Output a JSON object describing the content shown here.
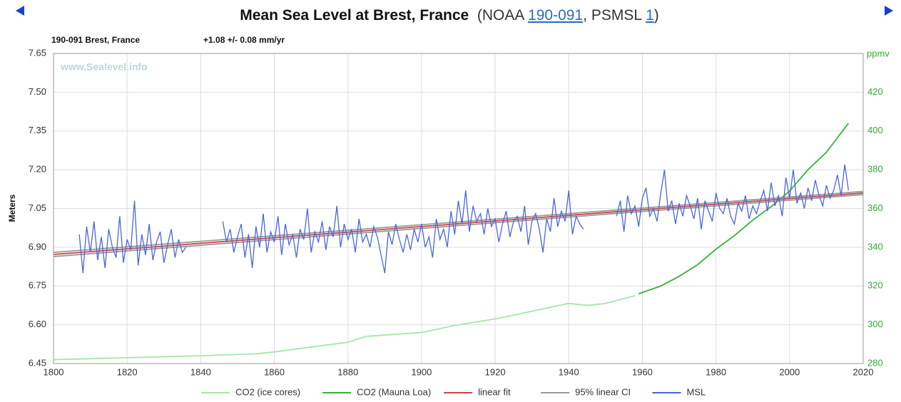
{
  "chart_data": {
    "type": "line",
    "title": "Mean Sea Level at Brest, France",
    "source": [
      "(NOAA ",
      "190-091",
      ", PSMSL ",
      "1",
      ")"
    ],
    "station": "190-091 Brest, France",
    "trend": "+1.08 +/- 0.08 mm/yr",
    "watermark": "www.Sealevel.info",
    "ylabel": "Meters",
    "y2label": "ppmv",
    "xlim": [
      1800,
      2020
    ],
    "xticks": [
      1800,
      1820,
      1840,
      1860,
      1880,
      1900,
      1920,
      1940,
      1960,
      1980,
      2000,
      2020
    ],
    "ylim": [
      6.45,
      7.65
    ],
    "yticks": [
      6.45,
      {
        "value": 6.6,
        "label": "6.60"
      },
      6.75,
      {
        "value": 6.9,
        "label": "6.90"
      },
      7.05,
      {
        "value": 7.2,
        "label": "7.20"
      },
      7.35,
      {
        "value": 7.5,
        "label": "7.50"
      },
      7.65
    ],
    "y2lim": [
      280,
      440
    ],
    "y2ticks": [
      280,
      300,
      320,
      340,
      360,
      380,
      400,
      420
    ],
    "grid": true,
    "legend": "bottom",
    "series": [
      {
        "name": "CO2 (ice cores)",
        "color": "#a6e6a6",
        "axis": "y2",
        "x": [
          1800,
          1820,
          1840,
          1855,
          1860,
          1880,
          1885,
          1900,
          1910,
          1920,
          1930,
          1940,
          1945,
          1950,
          1958
        ],
        "values": [
          282,
          283,
          284,
          285,
          286,
          291,
          294,
          296,
          300,
          303,
          307,
          311,
          310,
          311,
          315
        ]
      },
      {
        "name": "CO2 (Mauna Loa)",
        "color": "#33b533",
        "axis": "y2",
        "x": [
          1959,
          1965,
          1970,
          1975,
          1980,
          1985,
          1990,
          1995,
          2000,
          2005,
          2010,
          2016
        ],
        "values": [
          316,
          320,
          325,
          331,
          339,
          346,
          354,
          361,
          369,
          380,
          389,
          404
        ]
      },
      {
        "name": "linear fit",
        "color": "#cc4444",
        "x": [
          1800,
          2020
        ],
        "values": [
          6.872,
          7.11
        ]
      },
      {
        "name": "95% linear CI",
        "color": "#999999",
        "x": [
          1800,
          2020
        ],
        "lower": [
          6.864,
          7.104
        ],
        "upper": [
          6.88,
          7.116
        ]
      },
      {
        "name": "MSL",
        "color": "#4a66dd",
        "x": [
          1807,
          1808,
          1809,
          1810,
          1811,
          1812,
          1813,
          1814,
          1815,
          1816,
          1817,
          1818,
          1819,
          1820,
          1821,
          1822,
          1823,
          1824,
          1825,
          1826,
          1827,
          1828,
          1829,
          1830,
          1831,
          1832,
          1833,
          1834,
          1835,
          1836,
          1837,
          1838,
          1839,
          1840,
          1841,
          1842,
          1843,
          1844,
          1845,
          1846,
          1847,
          1848,
          1849,
          1850,
          1851,
          1852,
          1853,
          1854,
          1855,
          1856,
          1857,
          1858,
          1859,
          1860,
          1861,
          1862,
          1863,
          1864,
          1865,
          1866,
          1867,
          1868,
          1869,
          1870,
          1871,
          1872,
          1873,
          1874,
          1875,
          1876,
          1877,
          1878,
          1879,
          1880,
          1881,
          1882,
          1883,
          1884,
          1885,
          1886,
          1887,
          1888,
          1889,
          1890,
          1891,
          1892,
          1893,
          1894,
          1895,
          1896,
          1897,
          1898,
          1899,
          1900,
          1901,
          1902,
          1903,
          1904,
          1905,
          1906,
          1907,
          1908,
          1909,
          1910,
          1911,
          1912,
          1913,
          1914,
          1915,
          1916,
          1917,
          1918,
          1919,
          1920,
          1921,
          1922,
          1923,
          1924,
          1925,
          1926,
          1927,
          1928,
          1929,
          1930,
          1931,
          1932,
          1933,
          1934,
          1935,
          1936,
          1937,
          1938,
          1939,
          1940,
          1941,
          1942,
          1943,
          1944,
          1945,
          1946,
          1947,
          1948,
          1949,
          1950,
          1951,
          1952,
          1953,
          1954,
          1955,
          1956,
          1957,
          1958,
          1959,
          1960,
          1961,
          1962,
          1963,
          1964,
          1965,
          1966,
          1967,
          1968,
          1969,
          1970,
          1971,
          1972,
          1973,
          1974,
          1975,
          1976,
          1977,
          1978,
          1979,
          1980,
          1981,
          1982,
          1983,
          1984,
          1985,
          1986,
          1987,
          1988,
          1989,
          1990,
          1991,
          1992,
          1993,
          1994,
          1995,
          1996,
          1997,
          1998,
          1999,
          2000,
          2001,
          2002,
          2003,
          2004,
          2005,
          2006,
          2007,
          2008,
          2009,
          2010,
          2011,
          2012,
          2013,
          2014,
          2015,
          2016
        ],
        "values": [
          6.95,
          6.8,
          6.98,
          6.88,
          7.0,
          6.85,
          6.94,
          6.82,
          6.97,
          6.9,
          6.86,
          7.02,
          6.84,
          6.93,
          6.89,
          7.08,
          6.83,
          6.95,
          6.87,
          6.99,
          6.85,
          6.92,
          6.96,
          6.84,
          6.91,
          6.97,
          6.86,
          6.93,
          6.88,
          6.9,
          null,
          null,
          null,
          null,
          null,
          null,
          null,
          null,
          null,
          7.0,
          6.92,
          6.97,
          6.88,
          6.94,
          6.99,
          6.86,
          6.95,
          6.82,
          6.98,
          6.9,
          7.03,
          6.88,
          6.96,
          6.92,
          7.02,
          6.87,
          6.99,
          6.91,
          6.95,
          6.86,
          6.97,
          6.93,
          7.05,
          6.88,
          6.96,
          6.92,
          7.0,
          6.89,
          6.98,
          6.94,
          7.06,
          6.9,
          6.99,
          6.93,
          6.97,
          6.88,
          7.01,
          6.92,
          6.95,
          6.9,
          6.98,
          6.94,
          6.87,
          6.8,
          6.96,
          6.91,
          6.99,
          6.93,
          6.88,
          6.95,
          6.89,
          6.97,
          6.92,
          6.99,
          6.9,
          6.94,
          6.86,
          7.01,
          6.93,
          6.97,
          6.9,
          7.04,
          6.95,
          7.08,
          6.99,
          7.12,
          6.96,
          7.06,
          7.0,
          7.03,
          6.95,
          7.05,
          6.98,
          7.01,
          6.92,
          6.99,
          7.04,
          6.94,
          7.0,
          7.02,
          6.96,
          7.06,
          6.91,
          7.0,
          7.03,
          6.97,
          6.88,
          7.01,
          6.96,
          7.09,
          6.98,
          7.04,
          7.0,
          7.12,
          6.95,
          7.02,
          6.99,
          6.97,
          null,
          null,
          null,
          null,
          null,
          null,
          null,
          null,
          7.02,
          7.08,
          6.96,
          7.1,
          7.03,
          7.06,
          6.98,
          7.09,
          7.13,
          7.02,
          7.05,
          7.0,
          7.11,
          7.2,
          7.04,
          7.08,
          6.99,
          7.07,
          7.02,
          7.1,
          7.06,
          7.01,
          7.09,
          6.97,
          7.08,
          7.04,
          7.0,
          7.11,
          7.05,
          7.03,
          7.09,
          7.02,
          6.99,
          7.07,
          7.04,
          7.1,
          7.01,
          7.06,
          7.03,
          7.08,
          7.12,
          7.04,
          7.15,
          7.06,
          7.1,
          7.02,
          7.17,
          7.09,
          7.2,
          7.07,
          7.11,
          7.05,
          7.13,
          7.08,
          7.16,
          7.1,
          7.06,
          7.14,
          7.09,
          7.12,
          7.18,
          7.1,
          7.22,
          7.12
        ]
      }
    ]
  }
}
